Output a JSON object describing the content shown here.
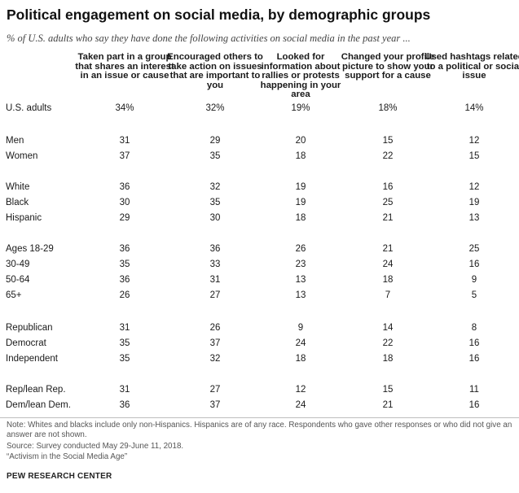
{
  "title": "Political engagement on social media, by demographic groups",
  "subtitle": "% of U.S. adults who say they have done the following activities on social media in the past year ...",
  "chart_data": {
    "type": "table",
    "columns": [
      "Taken part in a group that shares an interest in an issue or cause",
      "Encouraged others to take action on issues that are important to you",
      "Looked for information about rallies or protests happening in your area",
      "Changed your profile picture to show your support for a cause",
      "Used hashtags related to a political or social issue"
    ],
    "rows": [
      {
        "label": "U.S. adults",
        "values": [
          "34%",
          "32%",
          "19%",
          "18%",
          "14%"
        ]
      },
      {
        "label": "Men",
        "values": [
          "31",
          "29",
          "20",
          "15",
          "12"
        ]
      },
      {
        "label": "Women",
        "values": [
          "37",
          "35",
          "18",
          "22",
          "15"
        ]
      },
      {
        "label": "White",
        "values": [
          "36",
          "32",
          "19",
          "16",
          "12"
        ]
      },
      {
        "label": "Black",
        "values": [
          "30",
          "35",
          "19",
          "25",
          "19"
        ]
      },
      {
        "label": "Hispanic",
        "values": [
          "29",
          "30",
          "18",
          "21",
          "13"
        ]
      },
      {
        "label": "Ages 18-29",
        "values": [
          "36",
          "36",
          "26",
          "21",
          "25"
        ]
      },
      {
        "label": "30-49",
        "values": [
          "35",
          "33",
          "23",
          "24",
          "16"
        ]
      },
      {
        "label": "50-64",
        "values": [
          "36",
          "31",
          "13",
          "18",
          "9"
        ]
      },
      {
        "label": "65+",
        "values": [
          "26",
          "27",
          "13",
          "7",
          "5"
        ]
      },
      {
        "label": "Republican",
        "values": [
          "31",
          "26",
          "9",
          "14",
          "8"
        ]
      },
      {
        "label": "Democrat",
        "values": [
          "35",
          "37",
          "24",
          "22",
          "16"
        ]
      },
      {
        "label": "Independent",
        "values": [
          "35",
          "32",
          "18",
          "18",
          "16"
        ]
      },
      {
        "label": "Rep/lean Rep.",
        "values": [
          "31",
          "27",
          "12",
          "15",
          "11"
        ]
      },
      {
        "label": "Dem/lean Dem.",
        "values": [
          "36",
          "37",
          "24",
          "21",
          "16"
        ]
      }
    ]
  },
  "footer": {
    "note": "Note: Whites and blacks include only non-Hispanics. Hispanics are of any race. Respondents who gave other responses or who did not give an answer are not shown.",
    "source": "Source: Survey conducted May 29-June 11, 2018.",
    "report": "“Activism in the Social Media Age”",
    "brand": "PEW RESEARCH CENTER"
  }
}
